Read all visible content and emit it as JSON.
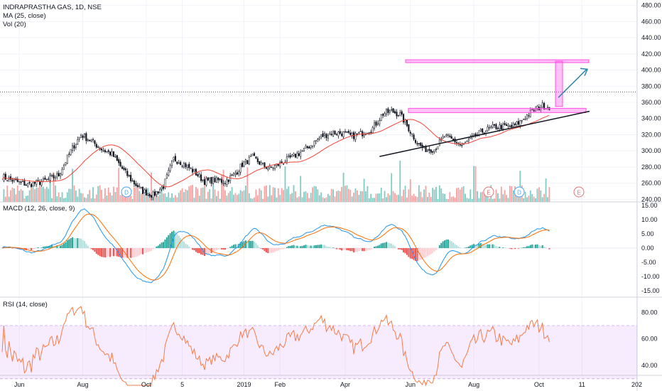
{
  "legend": {
    "title": "INDRAPRASTHA GAS, 1D, NSE",
    "ma": "MA (25, close)",
    "vol": "Vol (20)",
    "macd": "MACD (12, 26, close, 9)",
    "rsi": "RSI (14, close)"
  },
  "chart_data": [
    {
      "type": "candlestick",
      "title": "INDRAPRASTHA GAS, 1D, NSE",
      "yticks": [
        "480.00",
        "460.00",
        "440.00",
        "420.00",
        "400.00",
        "380.00",
        "360.00",
        "340.00",
        "320.00",
        "300.00",
        "280.00",
        "260.00",
        "240.00"
      ],
      "ylim": [
        235,
        485
      ],
      "xticks": [
        "Jun",
        "Aug",
        "Oct",
        "5",
        "2019",
        "Feb",
        "Apr",
        "Jun",
        "Aug",
        "Oct",
        "11",
        "202"
      ],
      "series_overlay": "MA (25, close)",
      "price_anchors": [
        [
          0,
          268
        ],
        [
          8,
          262
        ],
        [
          15,
          258
        ],
        [
          24,
          262
        ],
        [
          33,
          270
        ],
        [
          40,
          300
        ],
        [
          46,
          320
        ],
        [
          52,
          312
        ],
        [
          58,
          302
        ],
        [
          64,
          296
        ],
        [
          70,
          278
        ],
        [
          76,
          262
        ],
        [
          82,
          250
        ],
        [
          88,
          245
        ],
        [
          94,
          256
        ],
        [
          100,
          290
        ],
        [
          106,
          284
        ],
        [
          112,
          274
        ],
        [
          118,
          262
        ],
        [
          124,
          264
        ],
        [
          130,
          262
        ],
        [
          136,
          272
        ],
        [
          140,
          283
        ],
        [
          146,
          292
        ],
        [
          152,
          282
        ],
        [
          156,
          278
        ],
        [
          162,
          284
        ],
        [
          168,
          291
        ],
        [
          174,
          298
        ],
        [
          180,
          307
        ],
        [
          186,
          318
        ],
        [
          192,
          322
        ],
        [
          198,
          322
        ],
        [
          204,
          318
        ],
        [
          210,
          322
        ],
        [
          216,
          328
        ],
        [
          222,
          346
        ],
        [
          227,
          349
        ],
        [
          232,
          345
        ],
        [
          238,
          324
        ],
        [
          242,
          310
        ],
        [
          246,
          302
        ],
        [
          252,
          302
        ],
        [
          258,
          318
        ],
        [
          264,
          312
        ],
        [
          268,
          306
        ],
        [
          274,
          316
        ],
        [
          280,
          324
        ],
        [
          286,
          329
        ],
        [
          292,
          330
        ],
        [
          298,
          330
        ],
        [
          302,
          336
        ],
        [
          306,
          344
        ],
        [
          310,
          350
        ],
        [
          315,
          356
        ],
        [
          320,
          354
        ],
        [
          324,
          368
        ]
      ],
      "markers": [
        "D",
        "E",
        "D",
        "E"
      ],
      "annotations": {
        "resistance_top": 411,
        "support_zone": 350,
        "trendline_start": [
          220,
          293
        ],
        "trendline_end": [
          330,
          349
        ],
        "target_arrow": "up-right",
        "last_price_line": 373
      }
    },
    {
      "type": "bar",
      "title": "Vol (20)",
      "note": "volume histogram overlaid at the base of the price pane"
    },
    {
      "type": "line",
      "title": "MACD (12, 26, close, 9)",
      "yticks": [
        "15.00",
        "10.00",
        "5.00",
        "0.00",
        "-5.00",
        "-10.00",
        "-15.00"
      ],
      "ylim": [
        -16,
        16
      ],
      "series": [
        {
          "name": "MACD",
          "color": "#2196f3"
        },
        {
          "name": "Signal",
          "color": "#ff6d00"
        }
      ],
      "histogram_colors": {
        "pos_up": "#26a69a",
        "pos_down": "#b2dfdb",
        "neg_down": "#ef5350",
        "neg_up": "#ffcdd2"
      }
    },
    {
      "type": "line",
      "title": "RSI (14, close)",
      "yticks": [
        "80.00",
        "60.00",
        "40.00"
      ],
      "ylim": [
        25,
        85
      ],
      "band": [
        30,
        70
      ],
      "series": [
        {
          "name": "RSI",
          "color": "#f57c49"
        }
      ]
    }
  ],
  "colors": {
    "up": "#131722",
    "down": "#131722",
    "ma": "#f44336",
    "vol_up": "#80cbc4",
    "vol_down": "#f7a1a1",
    "box": "#ff4fe6",
    "box_fill": "rgba(255,79,230,0.35)",
    "arrow": "#2e86ab",
    "rsi_band": "rgba(180,100,240,0.12)",
    "marker_border": "#e57373",
    "marker_d": "#42a5f5"
  }
}
